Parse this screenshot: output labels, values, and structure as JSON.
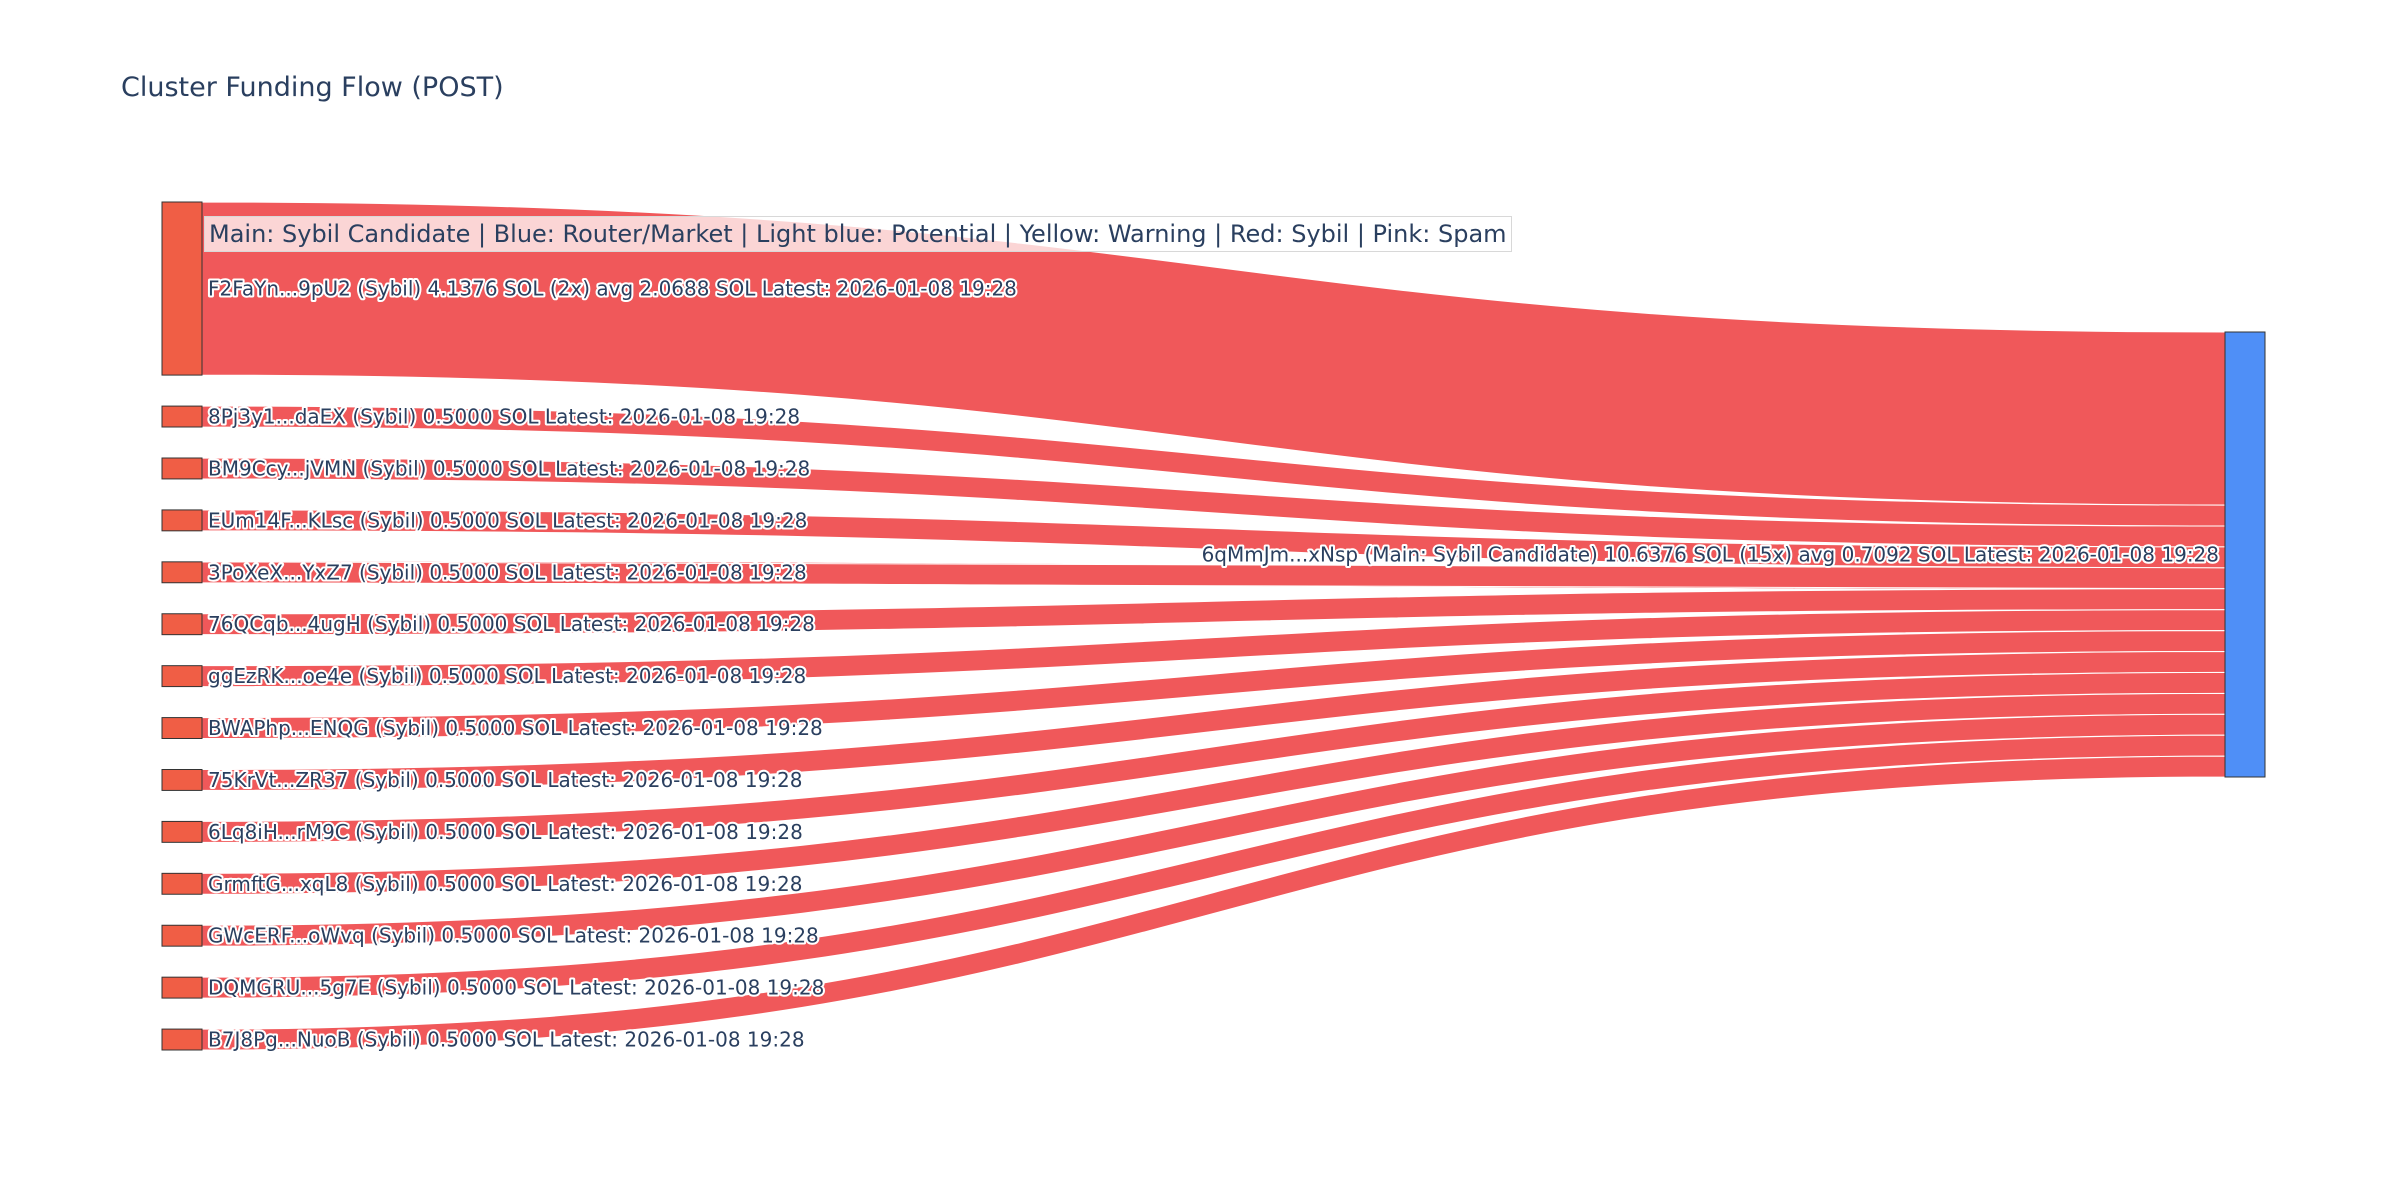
{
  "chart_data": {
    "type": "sankey",
    "title": "Cluster Funding Flow (POST)",
    "legend_text": "Main: Sybil Candidate  |  Blue: Router/Market | Light blue: Potential | Yellow: Warning | Red: Sybil | Pink: Spam",
    "colors": {
      "sybil": "#ef553b",
      "link": "#f0585a",
      "main": "#4f8ff7",
      "node_border": "#333333"
    },
    "sources": [
      {
        "label": "F2FaYn...9pU2 (Sybil) 4.1376 SOL (2x) avg 2.0688 SOL Latest: 2026-01-08 19:28",
        "value": 4.1376
      },
      {
        "label": "8Pj3y1...daEX (Sybil) 0.5000 SOL Latest: 2026-01-08 19:28",
        "value": 0.5
      },
      {
        "label": "BM9Ccy...jVMN (Sybil) 0.5000 SOL Latest: 2026-01-08 19:28",
        "value": 0.5
      },
      {
        "label": "EUm14F...KLsc (Sybil) 0.5000 SOL Latest: 2026-01-08 19:28",
        "value": 0.5
      },
      {
        "label": "3PoXeX...YxZ7 (Sybil) 0.5000 SOL Latest: 2026-01-08 19:28",
        "value": 0.5
      },
      {
        "label": "76QCqb...4ugH (Sybil) 0.5000 SOL Latest: 2026-01-08 19:28",
        "value": 0.5
      },
      {
        "label": "ggEzRK...oe4e (Sybil) 0.5000 SOL Latest: 2026-01-08 19:28",
        "value": 0.5
      },
      {
        "label": "BWAPhp...ENQG (Sybil) 0.5000 SOL Latest: 2026-01-08 19:28",
        "value": 0.5
      },
      {
        "label": "75KrVt...ZR37 (Sybil) 0.5000 SOL Latest: 2026-01-08 19:28",
        "value": 0.5
      },
      {
        "label": "6Lq8iH...rM9C (Sybil) 0.5000 SOL Latest: 2026-01-08 19:28",
        "value": 0.5
      },
      {
        "label": "GrmftG...xqL8 (Sybil) 0.5000 SOL Latest: 2026-01-08 19:28",
        "value": 0.5
      },
      {
        "label": "GWcERF...oWvq (Sybil) 0.5000 SOL Latest: 2026-01-08 19:28",
        "value": 0.5
      },
      {
        "label": "DQMGRU...5g7E (Sybil) 0.5000 SOL Latest: 2026-01-08 19:28",
        "value": 0.5
      },
      {
        "label": "B7J8Pg...NuoB (Sybil) 0.5000 SOL Latest: 2026-01-08 19:28",
        "value": 0.5
      }
    ],
    "target": {
      "label": "6qMmJm...xNsp (Main: Sybil Candidate) 10.6376 SOL (15x) avg 0.7092 SOL Latest: 2026-01-08 19:28",
      "value": 10.6376
    }
  }
}
